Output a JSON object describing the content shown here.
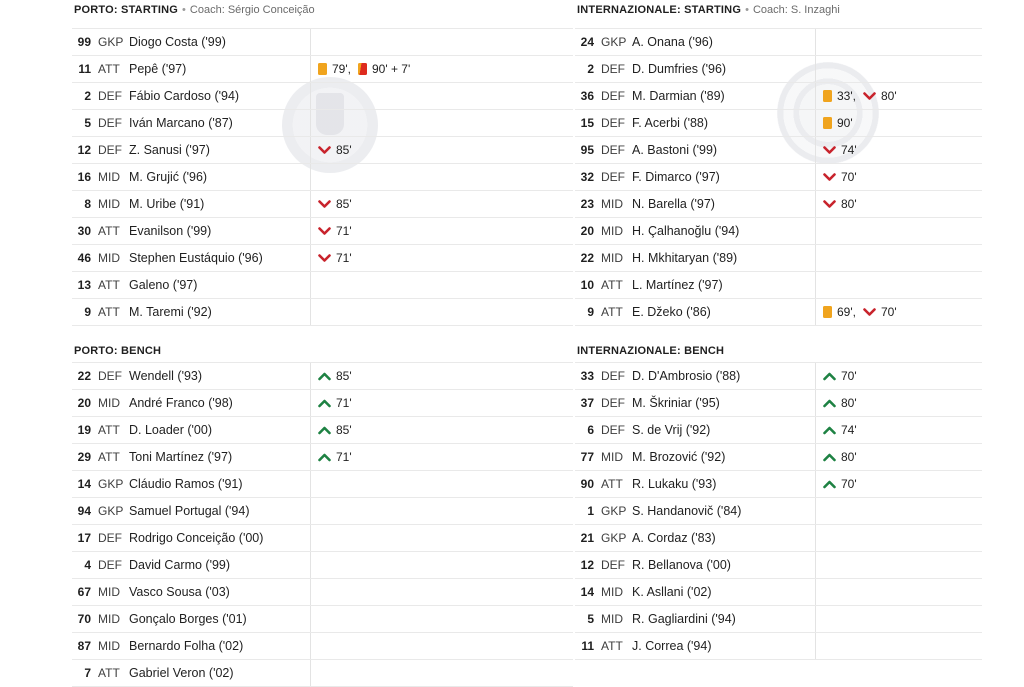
{
  "ui": {
    "header_separator": "•",
    "event_separator": ","
  },
  "colors": {
    "yellow_card": "#F0A41E",
    "second_yellow_card_red": "#DE2B1E",
    "sub_out_arrow": "#C8232C",
    "sub_in_arrow": "#1E8243",
    "row_border": "#E9E9E9",
    "text_primary": "#1F1F1F",
    "text_secondary": "#6B6B6B"
  },
  "icons": {
    "yellow-card": "small amber card rectangle",
    "second-yellow-card": "amber+red card rectangle",
    "sub-out": "red chevron-down",
    "sub-in": "green chevron-up"
  },
  "left_column": {
    "starting": {
      "title": "PORTO: STARTING",
      "coach": "Coach: Sérgio Conceição",
      "players": [
        {
          "number": "99",
          "position": "GKP",
          "name": "Diogo Costa ('99)",
          "events": []
        },
        {
          "number": "11",
          "position": "ATT",
          "name": "Pepê ('97)",
          "events": [
            {
              "type": "yellow-card",
              "time": "79'"
            },
            {
              "type": "second-yellow-card",
              "time": "90' + 7'"
            }
          ]
        },
        {
          "number": "2",
          "position": "DEF",
          "name": "Fábio Cardoso ('94)",
          "events": []
        },
        {
          "number": "5",
          "position": "DEF",
          "name": "Iván Marcano ('87)",
          "events": []
        },
        {
          "number": "12",
          "position": "DEF",
          "name": "Z. Sanusi ('97)",
          "events": [
            {
              "type": "sub-out",
              "time": "85'"
            }
          ]
        },
        {
          "number": "16",
          "position": "MID",
          "name": "M. Grujić ('96)",
          "events": []
        },
        {
          "number": "8",
          "position": "MID",
          "name": "M. Uribe ('91)",
          "events": [
            {
              "type": "sub-out",
              "time": "85'"
            }
          ]
        },
        {
          "number": "30",
          "position": "ATT",
          "name": "Evanilson ('99)",
          "events": [
            {
              "type": "sub-out",
              "time": "71'"
            }
          ]
        },
        {
          "number": "46",
          "position": "MID",
          "name": "Stephen Eustáquio ('96)",
          "events": [
            {
              "type": "sub-out",
              "time": "71'"
            }
          ]
        },
        {
          "number": "13",
          "position": "ATT",
          "name": "Galeno ('97)",
          "events": []
        },
        {
          "number": "9",
          "position": "ATT",
          "name": "M. Taremi ('92)",
          "events": []
        }
      ]
    },
    "bench": {
      "title": "PORTO: BENCH",
      "players": [
        {
          "number": "22",
          "position": "DEF",
          "name": "Wendell ('93)",
          "events": [
            {
              "type": "sub-in",
              "time": "85'"
            }
          ]
        },
        {
          "number": "20",
          "position": "MID",
          "name": "André Franco ('98)",
          "events": [
            {
              "type": "sub-in",
              "time": "71'"
            }
          ]
        },
        {
          "number": "19",
          "position": "ATT",
          "name": "D. Loader ('00)",
          "events": [
            {
              "type": "sub-in",
              "time": "85'"
            }
          ]
        },
        {
          "number": "29",
          "position": "ATT",
          "name": "Toni Martínez ('97)",
          "events": [
            {
              "type": "sub-in",
              "time": "71'"
            }
          ]
        },
        {
          "number": "14",
          "position": "GKP",
          "name": "Cláudio Ramos ('91)",
          "events": []
        },
        {
          "number": "94",
          "position": "GKP",
          "name": "Samuel Portugal ('94)",
          "events": []
        },
        {
          "number": "17",
          "position": "DEF",
          "name": "Rodrigo Conceição ('00)",
          "events": []
        },
        {
          "number": "4",
          "position": "DEF",
          "name": "David Carmo ('99)",
          "events": []
        },
        {
          "number": "67",
          "position": "MID",
          "name": "Vasco Sousa ('03)",
          "events": []
        },
        {
          "number": "70",
          "position": "MID",
          "name": "Gonçalo Borges ('01)",
          "events": []
        },
        {
          "number": "87",
          "position": "MID",
          "name": "Bernardo Folha ('02)",
          "events": []
        },
        {
          "number": "7",
          "position": "ATT",
          "name": "Gabriel Veron ('02)",
          "events": []
        }
      ]
    }
  },
  "right_column": {
    "starting": {
      "title": "INTERNAZIONALE: STARTING",
      "coach": "Coach: S. Inzaghi",
      "players": [
        {
          "number": "24",
          "position": "GKP",
          "name": "A. Onana ('96)",
          "events": []
        },
        {
          "number": "2",
          "position": "DEF",
          "name": "D. Dumfries ('96)",
          "events": []
        },
        {
          "number": "36",
          "position": "DEF",
          "name": "M. Darmian ('89)",
          "events": [
            {
              "type": "yellow-card",
              "time": "33'"
            },
            {
              "type": "sub-out",
              "time": "80'"
            }
          ]
        },
        {
          "number": "15",
          "position": "DEF",
          "name": "F. Acerbi ('88)",
          "events": [
            {
              "type": "yellow-card",
              "time": "90'"
            }
          ]
        },
        {
          "number": "95",
          "position": "DEF",
          "name": "A. Bastoni ('99)",
          "events": [
            {
              "type": "sub-out",
              "time": "74'"
            }
          ]
        },
        {
          "number": "32",
          "position": "DEF",
          "name": "F. Dimarco ('97)",
          "events": [
            {
              "type": "sub-out",
              "time": "70'"
            }
          ]
        },
        {
          "number": "23",
          "position": "MID",
          "name": "N. Barella ('97)",
          "events": [
            {
              "type": "sub-out",
              "time": "80'"
            }
          ]
        },
        {
          "number": "20",
          "position": "MID",
          "name": "H. Çalhanoğlu ('94)",
          "events": []
        },
        {
          "number": "22",
          "position": "MID",
          "name": "H. Mkhitaryan ('89)",
          "events": []
        },
        {
          "number": "10",
          "position": "ATT",
          "name": "L. Martínez ('97)",
          "events": []
        },
        {
          "number": "9",
          "position": "ATT",
          "name": "E. Džeko ('86)",
          "events": [
            {
              "type": "yellow-card",
              "time": "69'"
            },
            {
              "type": "sub-out",
              "time": "70'"
            }
          ]
        }
      ]
    },
    "bench": {
      "title": "INTERNAZIONALE: BENCH",
      "players": [
        {
          "number": "33",
          "position": "DEF",
          "name": "D. D'Ambrosio ('88)",
          "events": [
            {
              "type": "sub-in",
              "time": "70'"
            }
          ]
        },
        {
          "number": "37",
          "position": "DEF",
          "name": "M. Škriniar ('95)",
          "events": [
            {
              "type": "sub-in",
              "time": "80'"
            }
          ]
        },
        {
          "number": "6",
          "position": "DEF",
          "name": "S. de Vrij ('92)",
          "events": [
            {
              "type": "sub-in",
              "time": "74'"
            }
          ]
        },
        {
          "number": "77",
          "position": "MID",
          "name": "M. Brozović ('92)",
          "events": [
            {
              "type": "sub-in",
              "time": "80'"
            }
          ]
        },
        {
          "number": "90",
          "position": "ATT",
          "name": "R. Lukaku ('93)",
          "events": [
            {
              "type": "sub-in",
              "time": "70'"
            }
          ]
        },
        {
          "number": "1",
          "position": "GKP",
          "name": "S. Handanovič ('84)",
          "events": []
        },
        {
          "number": "21",
          "position": "GKP",
          "name": "A. Cordaz ('83)",
          "events": []
        },
        {
          "number": "12",
          "position": "DEF",
          "name": "R. Bellanova ('00)",
          "events": []
        },
        {
          "number": "14",
          "position": "MID",
          "name": "K. Asllani ('02)",
          "events": []
        },
        {
          "number": "5",
          "position": "MID",
          "name": "R. Gagliardini ('94)",
          "events": []
        },
        {
          "number": "11",
          "position": "ATT",
          "name": "J. Correa ('94)",
          "events": []
        }
      ]
    }
  }
}
